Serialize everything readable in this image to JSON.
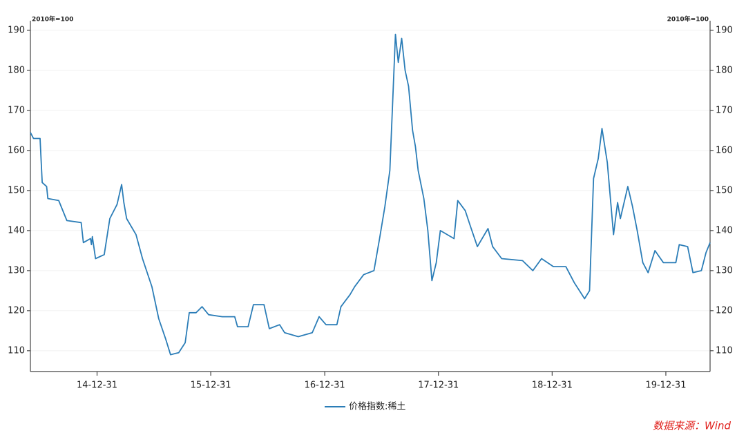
{
  "chart_data": {
    "type": "line",
    "y_unit_label": "2010年=100",
    "source": "数据来源：Wind",
    "mirror_y_axis": true,
    "grid": true,
    "legend": "bottom",
    "x": [
      "14-05-31",
      "14-06-10",
      "14-07-01",
      "14-07-08",
      "14-07-22",
      "14-07-26",
      "14-08-30",
      "14-09-25",
      "14-11-10",
      "14-11-17",
      "14-12-10",
      "14-12-13",
      "14-12-16",
      "14-12-26",
      "15-01-23",
      "15-02-10",
      "15-03-05",
      "15-03-20",
      "15-03-27",
      "15-04-05",
      "15-05-05",
      "15-05-26",
      "15-06-25",
      "15-07-17",
      "15-08-08",
      "15-08-24",
      "15-09-19",
      "15-10-10",
      "15-10-23",
      "15-11-14",
      "15-12-03",
      "15-12-24",
      "16-02-06",
      "16-03-17",
      "16-03-26",
      "16-04-29",
      "16-05-16",
      "16-06-19",
      "16-07-06",
      "16-08-08",
      "16-08-24",
      "16-10-07",
      "16-11-21",
      "16-12-13",
      "17-01-04",
      "17-02-08",
      "17-02-21",
      "17-03-22",
      "17-04-06",
      "17-05-05",
      "17-06-07",
      "17-06-25",
      "17-07-12",
      "17-07-28",
      "17-08-08",
      "17-08-15",
      "17-08-24",
      "17-09-04",
      "17-09-15",
      "17-09-26",
      "17-10-09",
      "17-10-18",
      "17-10-27",
      "17-11-14",
      "17-11-27",
      "17-12-10",
      "17-12-24",
      "18-01-06",
      "18-02-19",
      "18-03-03",
      "18-03-27",
      "18-04-13",
      "18-05-05",
      "18-06-08",
      "18-06-23",
      "18-07-22",
      "18-09-27",
      "18-10-30",
      "18-11-27",
      "19-01-04",
      "19-02-13",
      "19-03-12",
      "19-04-14",
      "19-04-30",
      "19-05-13",
      "19-05-28",
      "19-06-09",
      "19-06-26",
      "19-07-16",
      "19-07-29",
      "19-08-07",
      "19-08-31",
      "19-09-15",
      "19-09-30",
      "19-10-18",
      "19-11-04",
      "19-11-26",
      "19-12-23",
      "20-02-01",
      "20-02-12",
      "20-03-10",
      "20-03-27",
      "20-04-23",
      "20-05-08",
      "20-05-21"
    ],
    "series": [
      {
        "name": "价格指数:稀土",
        "color": "#2b7db7",
        "values": [
          164.5,
          163,
          163,
          152,
          151,
          148,
          147.5,
          142.5,
          142,
          137,
          138,
          136.5,
          138.5,
          133,
          134,
          143,
          146.5,
          151.5,
          147,
          143,
          139,
          133,
          126,
          118,
          113,
          109,
          109.5,
          112,
          119.5,
          119.5,
          121,
          119,
          118.5,
          118.5,
          116,
          116,
          121.5,
          121.5,
          115.5,
          116.5,
          114.5,
          113.5,
          114.5,
          118.5,
          116.5,
          116.5,
          121,
          124,
          126,
          129,
          130,
          138,
          146,
          155,
          176,
          189,
          182,
          188,
          180,
          176,
          165,
          161,
          155,
          148,
          140,
          127.5,
          132,
          140,
          138,
          147.5,
          145,
          141,
          136,
          140.5,
          136,
          133,
          132.5,
          130,
          133,
          131,
          131,
          127,
          123,
          125,
          153,
          158,
          165.5,
          157,
          139,
          147,
          143,
          151,
          146,
          140,
          132,
          129.5,
          135,
          132,
          132,
          136.5,
          136,
          129.5,
          130,
          134.5,
          137
        ]
      }
    ],
    "xlim": [
      "14-05-31",
      "20-05-21"
    ],
    "xticks": [
      "14-12-31",
      "15-12-31",
      "16-12-31",
      "17-12-31",
      "18-12-31",
      "19-12-31"
    ],
    "ylim": [
      104.8,
      192.4
    ],
    "yticks": [
      110,
      120,
      130,
      140,
      150,
      160,
      170,
      180,
      190
    ]
  }
}
